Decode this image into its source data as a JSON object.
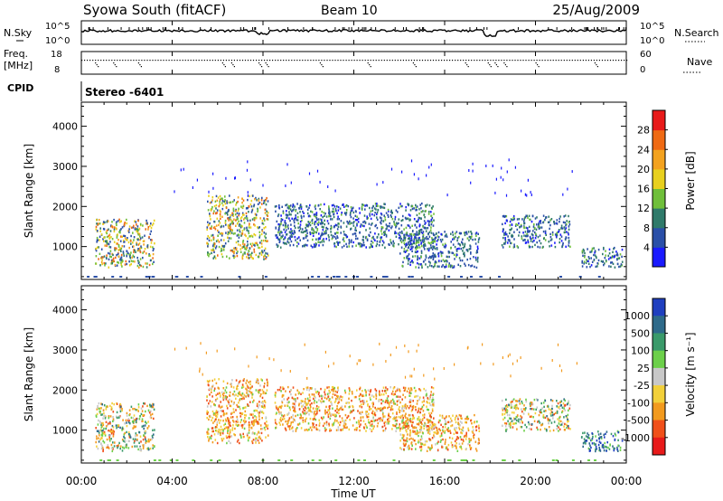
{
  "header": {
    "title": "Syowa South (fitACF)",
    "beam": "Beam 10",
    "date": "25/Aug/2009"
  },
  "noise_panel": {
    "left_label": "N.Sky",
    "left_ticks": [
      "10^5",
      "10^0"
    ],
    "right_label": "N.Search",
    "right_ticks": [
      "10^5",
      "10^0"
    ]
  },
  "freq_panel": {
    "label_line1": "Freq.",
    "label_line2": "[MHz]",
    "left_ticks": [
      "18",
      "8"
    ],
    "right_label": "Nave",
    "right_ticks": [
      "60",
      "0"
    ]
  },
  "cpid": {
    "label": "CPID",
    "value": "Stereo -6401"
  },
  "x_axis": {
    "label": "Time UT",
    "ticks": [
      "00:00",
      "04:00",
      "08:00",
      "12:00",
      "16:00",
      "20:00",
      "00:00"
    ],
    "range_hours": [
      0,
      24
    ]
  },
  "chart_data": [
    {
      "type": "heatmap",
      "panel": "power",
      "ylabel": "Slant Range [km]",
      "yticks": [
        "1000",
        "2000",
        "3000",
        "4000"
      ],
      "ylim": [
        180,
        4600
      ],
      "xlim_hours": [
        0,
        24
      ],
      "colorbar": {
        "label": "Power [dB]",
        "ticks": [
          "4",
          "8",
          "12",
          "16",
          "20",
          "24",
          "28"
        ],
        "colors": [
          "#1a1aff",
          "#2a4fa8",
          "#2f7a6a",
          "#6fbf3a",
          "#e8d01e",
          "#f3a21f",
          "#ef6a14",
          "#e81a1a"
        ]
      },
      "scatter_bands": [
        {
          "t_start": 0.6,
          "t_end": 3.2,
          "r_min": 500,
          "r_max": 1700,
          "level": "mixed"
        },
        {
          "t_start": 5.5,
          "t_end": 8.2,
          "r_min": 700,
          "r_max": 2300,
          "level": "mixed"
        },
        {
          "t_start": 8.5,
          "t_end": 15.5,
          "r_min": 1000,
          "r_max": 2100,
          "level": "low"
        },
        {
          "t_start": 14.0,
          "t_end": 17.5,
          "r_min": 500,
          "r_max": 1400,
          "level": "low"
        },
        {
          "t_start": 18.5,
          "t_end": 21.5,
          "r_min": 1000,
          "r_max": 1800,
          "level": "low"
        },
        {
          "t_start": 22.0,
          "t_end": 23.8,
          "r_min": 500,
          "r_max": 1000,
          "level": "low"
        }
      ]
    },
    {
      "type": "heatmap",
      "panel": "velocity",
      "ylabel": "Slant Range [km]",
      "yticks": [
        "1000",
        "2000",
        "3000",
        "4000"
      ],
      "ylim": [
        180,
        4600
      ],
      "xlim_hours": [
        0,
        24
      ],
      "colorbar": {
        "label": "Velocity [m s⁻¹]",
        "ticks": [
          "1000",
          "500",
          "100",
          "25",
          "-25",
          "-100",
          "-500",
          "-1000"
        ],
        "colors": [
          "#1f3fbf",
          "#2e6a8a",
          "#3a9a6a",
          "#6cd04a",
          "#c8c8c8",
          "#f2d03a",
          "#f29a1e",
          "#f0501a",
          "#e81a1a"
        ]
      },
      "scatter_bands": [
        {
          "t_start": 0.6,
          "t_end": 3.2,
          "r_min": 500,
          "r_max": 1700,
          "level": "toward-mixed"
        },
        {
          "t_start": 5.5,
          "t_end": 8.2,
          "r_min": 700,
          "r_max": 2300,
          "level": "away"
        },
        {
          "t_start": 8.5,
          "t_end": 15.5,
          "r_min": 1000,
          "r_max": 2100,
          "level": "away"
        },
        {
          "t_start": 14.0,
          "t_end": 17.5,
          "r_min": 500,
          "r_max": 1400,
          "level": "away"
        },
        {
          "t_start": 18.5,
          "t_end": 21.5,
          "r_min": 1000,
          "r_max": 1800,
          "level": "mixed"
        },
        {
          "t_start": 22.0,
          "t_end": 23.8,
          "r_min": 500,
          "r_max": 1000,
          "level": "toward"
        }
      ]
    }
  ]
}
